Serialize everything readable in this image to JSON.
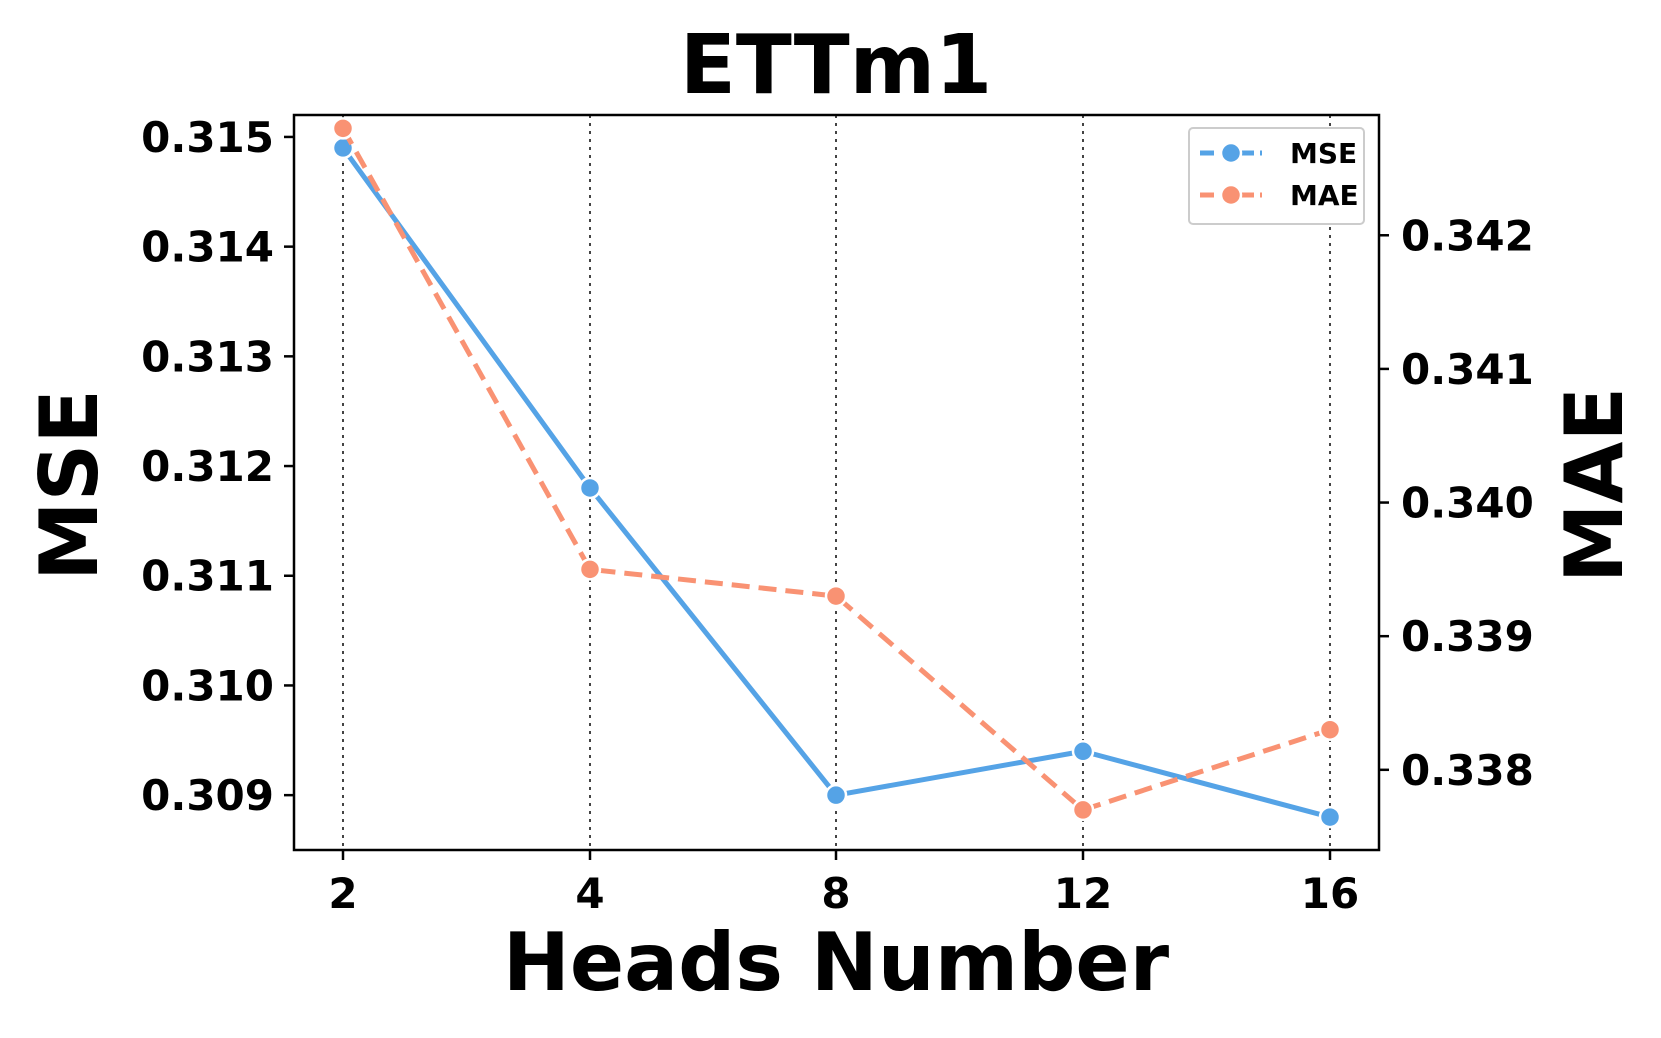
{
  "chart_data": {
    "type": "line",
    "title": "ETTm1",
    "xlabel": "Heads Number",
    "ylabel_left": "MSE",
    "ylabel_right": "MAE",
    "categories": [
      "2",
      "4",
      "8",
      "12",
      "16"
    ],
    "y_left": {
      "lim": [
        0.3085,
        0.3152
      ],
      "ticks": [
        "0.309",
        "0.310",
        "0.311",
        "0.312",
        "0.313",
        "0.314",
        "0.315"
      ]
    },
    "y_right": {
      "lim": [
        0.3374,
        0.3429
      ],
      "ticks": [
        "0.338",
        "0.339",
        "0.340",
        "0.341",
        "0.342"
      ]
    },
    "grid": "vertical dotted",
    "legend": "top-right",
    "series": [
      {
        "name": "MSE",
        "axis": "left",
        "style": "solid",
        "color": "#55a3e6",
        "values": [
          0.3149,
          0.3118,
          0.309,
          0.3094,
          0.3088
        ]
      },
      {
        "name": "MAE",
        "axis": "right",
        "style": "dashed",
        "color": "#f99273",
        "values": [
          0.3428,
          0.3395,
          0.3393,
          0.3377,
          0.3383
        ]
      }
    ]
  }
}
